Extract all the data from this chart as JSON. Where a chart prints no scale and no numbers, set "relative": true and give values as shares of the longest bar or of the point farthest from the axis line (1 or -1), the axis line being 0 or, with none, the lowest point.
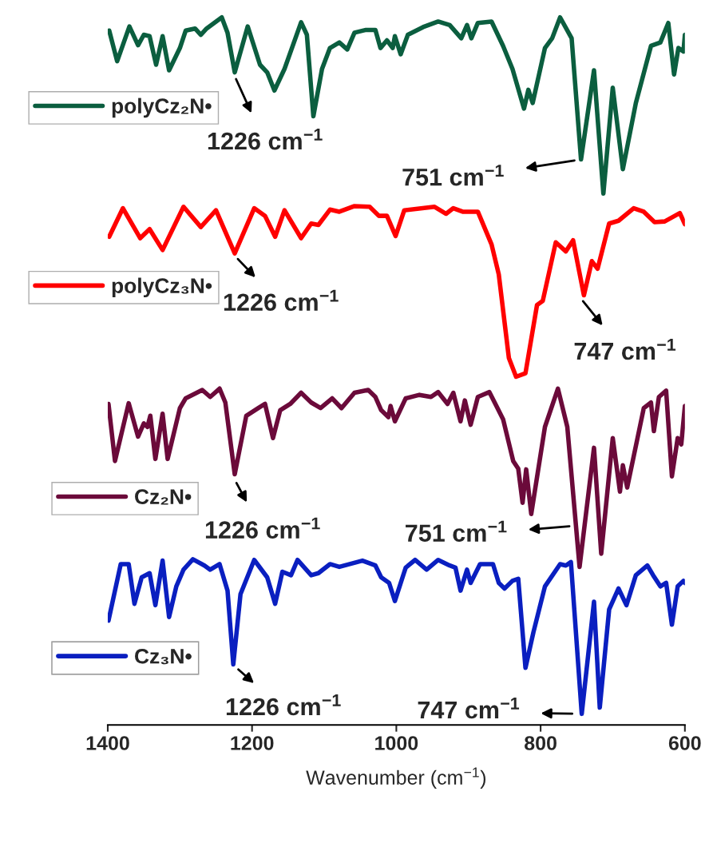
{
  "chart_data": {
    "type": "line",
    "relative": true,
    "xlabel": "Wavenumber (cm$^{−1}$)",
    "xlim": [
      1400,
      600
    ],
    "xticks": [
      1400,
      1200,
      1000,
      800,
      600
    ],
    "tick_labels": "x",
    "grid": false,
    "legend": "left",
    "marker": "none",
    "line_style": "solid",
    "series": [
      {
        "name": "polyCz₂N•",
        "color": "#0b5e3f",
        "x": [
          1398,
          1387,
          1370,
          1358,
          1350,
          1342,
          1333,
          1324,
          1315,
          1300,
          1292,
          1279,
          1271,
          1263,
          1242,
          1234,
          1224,
          1206,
          1189,
          1179,
          1169,
          1155,
          1132,
          1124,
          1115,
          1103,
          1092,
          1079,
          1068,
          1058,
          1042,
          1029,
          1022,
          1013,
          1005,
          1002,
          994,
          984,
          963,
          942,
          926,
          910,
          902,
          896,
          887,
          868,
          852,
          839,
          823,
          817,
          811,
          794,
          784,
          773,
          757,
          744,
          726,
          713,
          700,
          686,
          668,
          647,
          634,
          623,
          615,
          609,
          602,
          600
        ],
        "values": [
          0.981,
          0.937,
          0.987,
          0.96,
          0.975,
          0.973,
          0.932,
          0.973,
          0.924,
          0.956,
          0.981,
          0.984,
          0.975,
          0.984,
          1.0,
          0.978,
          0.921,
          0.987,
          0.932,
          0.921,
          0.895,
          0.926,
          0.993,
          0.975,
          0.858,
          0.926,
          0.956,
          0.964,
          0.954,
          0.978,
          0.982,
          0.982,
          0.956,
          0.967,
          0.956,
          0.973,
          0.947,
          0.975,
          0.986,
          0.994,
          0.989,
          0.97,
          0.989,
          0.97,
          0.992,
          0.994,
          0.959,
          0.926,
          0.869,
          0.896,
          0.877,
          0.956,
          0.97,
          1.0,
          0.97,
          0.796,
          0.924,
          0.747,
          0.899,
          0.782,
          0.877,
          0.959,
          0.964,
          0.992,
          0.918,
          0.956,
          0.951,
          0.975
        ]
      },
      {
        "name": "polyCz₃N•",
        "color": "#ff0000",
        "x": [
          1398,
          1379,
          1355,
          1342,
          1324,
          1295,
          1271,
          1250,
          1224,
          1197,
          1182,
          1168,
          1155,
          1132,
          1118,
          1108,
          1092,
          1079,
          1058,
          1037,
          1024,
          1013,
          1001,
          989,
          947,
          931,
          921,
          908,
          887,
          868,
          858,
          844,
          834,
          821,
          805,
          797,
          779,
          765,
          755,
          740,
          729,
          721,
          705,
          692,
          671,
          657,
          642,
          628,
          607,
          600
        ],
        "values": [
          0.685,
          0.726,
          0.683,
          0.696,
          0.666,
          0.728,
          0.699,
          0.723,
          0.661,
          0.726,
          0.715,
          0.685,
          0.723,
          0.683,
          0.704,
          0.702,
          0.724,
          0.721,
          0.729,
          0.728,
          0.715,
          0.715,
          0.686,
          0.723,
          0.728,
          0.718,
          0.726,
          0.721,
          0.721,
          0.674,
          0.631,
          0.511,
          0.484,
          0.489,
          0.587,
          0.593,
          0.677,
          0.664,
          0.68,
          0.601,
          0.65,
          0.639,
          0.704,
          0.708,
          0.726,
          0.721,
          0.706,
          0.707,
          0.719,
          0.703
        ]
      },
      {
        "name": "Cz₂N•",
        "color": "#6b0a3a",
        "x": [
          1399,
          1390,
          1371,
          1358,
          1350,
          1345,
          1341,
          1334,
          1324,
          1317,
          1300,
          1292,
          1269,
          1258,
          1245,
          1237,
          1224,
          1208,
          1190,
          1182,
          1171,
          1161,
          1147,
          1132,
          1118,
          1105,
          1089,
          1076,
          1058,
          1039,
          1029,
          1021,
          1011,
          1008,
          1002,
          987,
          968,
          952,
          942,
          929,
          921,
          911,
          905,
          897,
          887,
          871,
          852,
          838,
          831,
          825,
          820,
          813,
          794,
          776,
          763,
          746,
          726,
          716,
          700,
          690,
          686,
          680,
          657,
          647,
          643,
          636,
          626,
          618,
          610,
          605,
          600
        ],
        "values": [
          0.445,
          0.363,
          0.446,
          0.398,
          0.417,
          0.412,
          0.428,
          0.366,
          0.431,
          0.366,
          0.439,
          0.453,
          0.465,
          0.455,
          0.467,
          0.447,
          0.344,
          0.428,
          0.44,
          0.445,
          0.396,
          0.436,
          0.445,
          0.461,
          0.447,
          0.439,
          0.453,
          0.439,
          0.461,
          0.465,
          0.455,
          0.436,
          0.426,
          0.442,
          0.42,
          0.453,
          0.458,
          0.455,
          0.462,
          0.445,
          0.461,
          0.42,
          0.45,
          0.415,
          0.455,
          0.462,
          0.423,
          0.363,
          0.352,
          0.303,
          0.351,
          0.287,
          0.412,
          0.467,
          0.412,
          0.211,
          0.382,
          0.23,
          0.396,
          0.319,
          0.357,
          0.325,
          0.439,
          0.447,
          0.406,
          0.455,
          0.464,
          0.341,
          0.396,
          0.387,
          0.442
        ]
      },
      {
        "name": "Cz₃N•",
        "color": "#0a1fc0",
        "x": [
          1399,
          1382,
          1371,
          1363,
          1353,
          1342,
          1334,
          1324,
          1315,
          1305,
          1295,
          1282,
          1266,
          1258,
          1245,
          1234,
          1226,
          1216,
          1197,
          1179,
          1168,
          1158,
          1146,
          1137,
          1118,
          1108,
          1092,
          1079,
          1047,
          1029,
          1021,
          1010,
          1002,
          987,
          974,
          958,
          942,
          926,
          918,
          911,
          902,
          897,
          884,
          866,
          858,
          850,
          839,
          831,
          821,
          810,
          794,
          773,
          765,
          758,
          743,
          726,
          718,
          705,
          692,
          681,
          668,
          652,
          644,
          634,
          626,
          618,
          610,
          602,
          600
        ],
        "values": [
          0.134,
          0.215,
          0.215,
          0.158,
          0.196,
          0.202,
          0.156,
          0.22,
          0.139,
          0.183,
          0.207,
          0.222,
          0.213,
          0.207,
          0.215,
          0.177,
          0.071,
          0.172,
          0.221,
          0.196,
          0.158,
          0.204,
          0.199,
          0.221,
          0.199,
          0.202,
          0.215,
          0.211,
          0.22,
          0.213,
          0.196,
          0.188,
          0.162,
          0.21,
          0.221,
          0.207,
          0.221,
          0.213,
          0.21,
          0.177,
          0.207,
          0.188,
          0.215,
          0.215,
          0.188,
          0.18,
          0.191,
          0.194,
          0.066,
          0.117,
          0.183,
          0.215,
          0.213,
          0.218,
          0.0,
          0.161,
          0.009,
          0.15,
          0.18,
          0.156,
          0.199,
          0.213,
          0.199,
          0.183,
          0.188,
          0.128,
          0.183,
          0.191,
          0.188
        ]
      }
    ],
    "annotations": [
      {
        "text": "1226 cm$^{−1}$",
        "x": 1226,
        "y": 0.92
      },
      {
        "text": "751 cm$^{−1}$",
        "x": 744,
        "y": 0.796
      },
      {
        "text": "1226 cm$^{−1}$",
        "x": 1226,
        "y": 0.66
      },
      {
        "text": "747 cm$^{−1}$",
        "x": 747,
        "y": 0.6
      },
      {
        "text": "1226 cm$^{−1}$",
        "x": 1226,
        "y": 0.34
      },
      {
        "text": "751 cm$^{−1}$",
        "x": 751,
        "y": 0.27
      },
      {
        "text": "1226 cm$^{−1}$",
        "x": 1226,
        "y": 0.07
      },
      {
        "text": "747 cm$^{−1}$",
        "x": 747,
        "y": 0.0
      }
    ]
  }
}
